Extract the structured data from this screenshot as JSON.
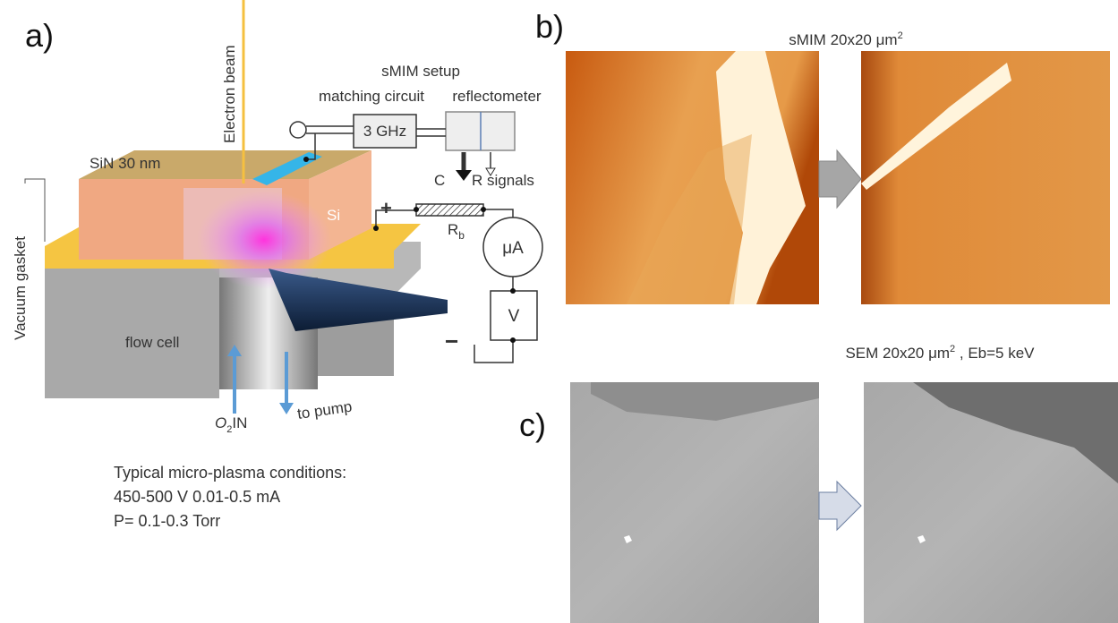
{
  "panel_a": {
    "label": "a)",
    "electron_beam": "Electron beam",
    "setup_title": "sMIM setup",
    "matching_circuit": "matching circuit",
    "reflectometer": "reflectometer",
    "frequency": "3 GHz",
    "sin_layer": "SiN 30 nm",
    "c_signal": "C",
    "r_signals": "R signals",
    "plus": "+",
    "si": "Si",
    "resistor": "R",
    "resistor_sub": "b",
    "ammeter": "μA",
    "voltmeter": "V",
    "minus": "−",
    "vacuum_gasket": "Vacuum gasket",
    "flow_cell": "flow cell",
    "gas": "O",
    "gas_sub": "2",
    "gas_in": "IN",
    "to_pump": "to pump",
    "conditions": [
      "Typical micro-plasma conditions:",
      "450-500 V 0.01-0.5 mA",
      "P= 0.1-0.3 Torr"
    ]
  },
  "panel_b": {
    "label": "b)",
    "title": "sMIM 20x20 μm",
    "title_sup": "2"
  },
  "panel_c": {
    "label": "c)",
    "title": "SEM 20x20 μm",
    "title_sup": "2",
    "title_rest": " , Eb=5 keV"
  }
}
